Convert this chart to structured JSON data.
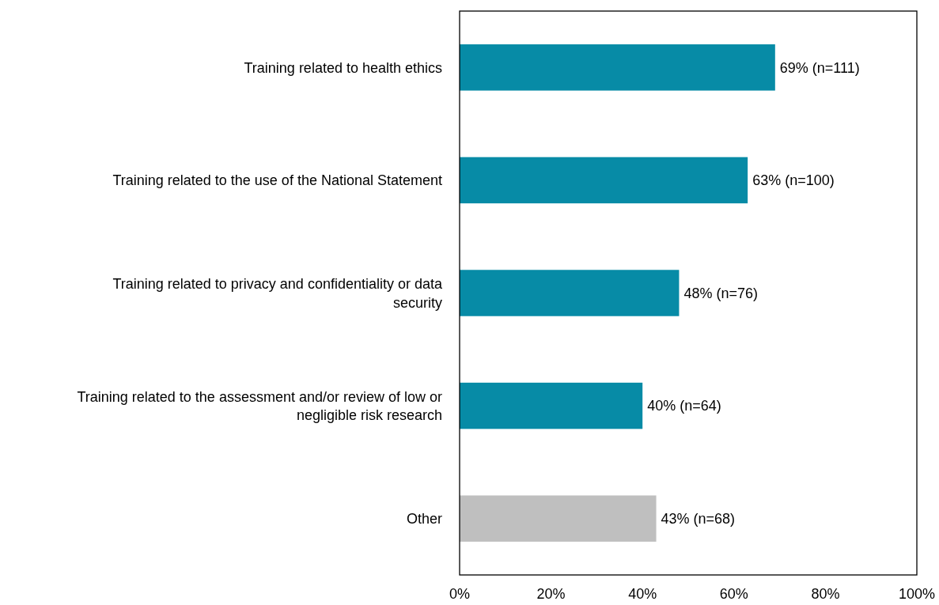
{
  "chart_data": {
    "type": "bar",
    "orientation": "horizontal",
    "categories": [
      "Training related to health ethics",
      "Training related to the use of the National Statement",
      "Training related to privacy and confidentiality or data security",
      "Training related to the assessment and/or review of low or negligible risk research",
      "Other"
    ],
    "values": [
      69,
      63,
      48,
      40,
      43
    ],
    "colors": [
      "#078ba6",
      "#078ba6",
      "#078ba6",
      "#078ba6",
      "#bfbfbf"
    ],
    "value_labels": [
      "69% (n=111)",
      "63% (n=100)",
      "48% (n=76)",
      "40% (n=64)",
      "43% (n=68)"
    ],
    "xlim": [
      0,
      100
    ],
    "xticks": [
      {
        "value": 0,
        "label": "0%"
      },
      {
        "value": 20,
        "label": "20%"
      },
      {
        "value": 40,
        "label": "40%"
      },
      {
        "value": 60,
        "label": "60%"
      },
      {
        "value": 80,
        "label": "80%"
      },
      {
        "value": 100,
        "label": "100%"
      }
    ],
    "grid": false
  }
}
